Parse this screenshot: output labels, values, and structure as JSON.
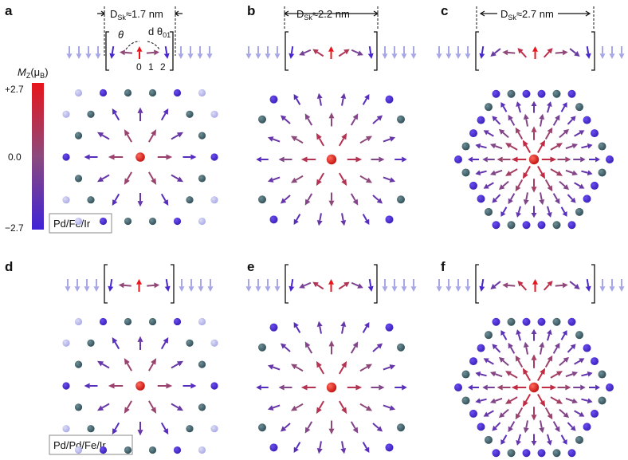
{
  "panels": [
    {
      "label": "a",
      "diameter_text": "D",
      "diameter_sub": "Sk",
      "diameter_value": "≈1.7 nm",
      "n_side": 2,
      "sites": "sparse"
    },
    {
      "label": "b",
      "diameter_text": "D",
      "diameter_sub": "Sk",
      "diameter_value": "≈2.2 nm",
      "n_side": 3,
      "sites": "medium"
    },
    {
      "label": "c",
      "diameter_text": "D",
      "diameter_sub": "Sk",
      "diameter_value": "≈2.7 nm",
      "n_side": 4,
      "sites": "dense"
    },
    {
      "label": "d",
      "n_side": 2,
      "sites": "sparse"
    },
    {
      "label": "e",
      "n_side": 3,
      "sites": "medium"
    },
    {
      "label": "f",
      "n_side": 4,
      "sites": "dense"
    }
  ],
  "colorbar": {
    "title": "M",
    "title_sub": "Z",
    "title_unit": "(μ",
    "title_unit_sub": "B",
    "title_close": ")",
    "ticks": [
      "+2.7",
      "0.0",
      "−2.7"
    ],
    "colors": [
      "#e8141a",
      "#8c4a7d",
      "#3f22d6"
    ]
  },
  "angle_labels": {
    "theta": "θ",
    "dtheta": "d θ",
    "dtheta_sub": "01",
    "indices": [
      "0",
      "1",
      "2"
    ]
  },
  "materials": [
    "Pd/Fe/Ir",
    "Pd/Pd/Fe/Ir"
  ]
}
